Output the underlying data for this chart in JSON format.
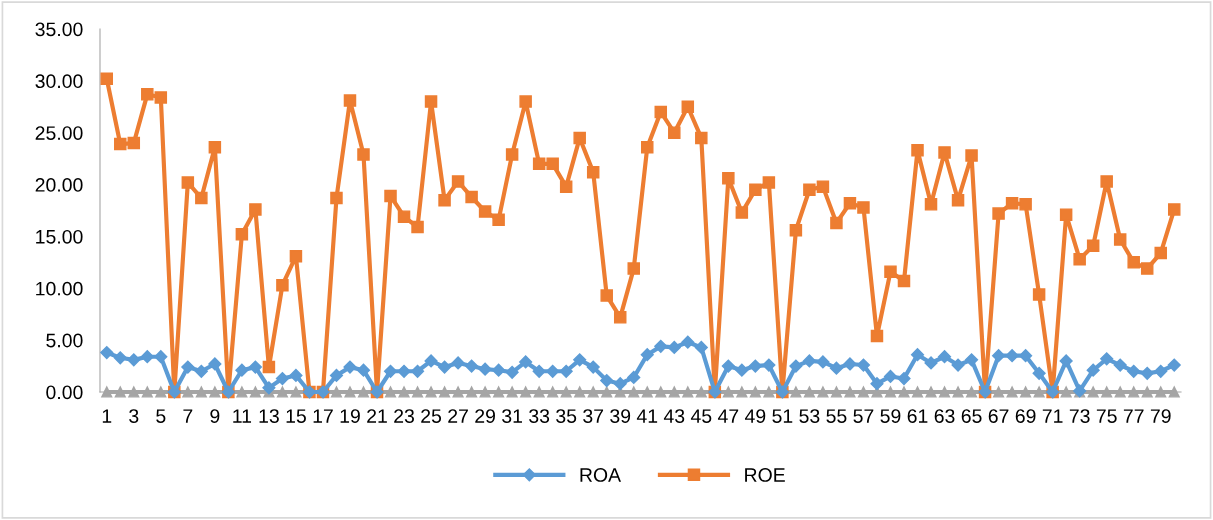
{
  "chart_data": {
    "type": "line",
    "categories": [
      "1",
      null,
      "3",
      null,
      "5",
      null,
      "7",
      null,
      "9",
      null,
      "11",
      null,
      "13",
      null,
      "15",
      null,
      "17",
      null,
      "19",
      null,
      "21",
      null,
      "23",
      null,
      "25",
      null,
      "27",
      null,
      "29",
      null,
      "31",
      null,
      "33",
      null,
      "35",
      null,
      "37",
      null,
      "39",
      null,
      "41",
      null,
      "43",
      null,
      "45",
      null,
      "47",
      null,
      "49",
      null,
      "51",
      null,
      "53",
      null,
      "55",
      null,
      "57",
      null,
      "59",
      null,
      "61",
      null,
      "63",
      null,
      "65",
      null,
      "67",
      null,
      "69",
      null,
      "71",
      null,
      "73",
      null,
      "75",
      null,
      "77",
      null,
      "79",
      null
    ],
    "series": [
      {
        "name": "ROA",
        "color": "#5b9bd5",
        "marker": "diamond",
        "values": [
          3.8,
          3.3,
          3.1,
          3.4,
          3.4,
          0,
          2.4,
          2.0,
          2.7,
          0,
          2.1,
          2.4,
          0.4,
          1.3,
          1.6,
          0,
          0,
          1.6,
          2.4,
          2.1,
          0,
          2.0,
          2.0,
          2.0,
          3.0,
          2.4,
          2.8,
          2.5,
          2.2,
          2.1,
          1.9,
          2.9,
          2.0,
          2.0,
          2.0,
          3.1,
          2.4,
          1.1,
          0.8,
          1.4,
          3.6,
          4.4,
          4.3,
          4.8,
          4.3,
          0,
          2.5,
          2.1,
          2.5,
          2.6,
          0,
          2.5,
          3.0,
          2.9,
          2.3,
          2.7,
          2.6,
          0.8,
          1.5,
          1.3,
          3.6,
          2.8,
          3.4,
          2.6,
          3.1,
          0,
          3.5,
          3.5,
          3.5,
          1.8,
          0,
          3.0,
          0.1,
          2.1,
          3.2,
          2.6,
          2.0,
          1.8,
          2.0,
          2.6
        ]
      },
      {
        "name": "ROE",
        "color": "#ed7d31",
        "marker": "square",
        "values": [
          30.2,
          23.9,
          24.0,
          28.7,
          28.4,
          0,
          20.2,
          18.7,
          23.6,
          0,
          15.2,
          17.6,
          2.4,
          10.3,
          13.1,
          0,
          0,
          18.7,
          28.1,
          22.9,
          0,
          18.9,
          16.9,
          15.9,
          28.0,
          18.5,
          20.3,
          18.8,
          17.4,
          16.6,
          22.9,
          28.0,
          22.0,
          22.0,
          19.8,
          24.5,
          21.2,
          9.3,
          7.2,
          11.9,
          23.6,
          27.0,
          25.0,
          27.5,
          24.5,
          0,
          20.6,
          17.3,
          19.5,
          20.2,
          0,
          15.6,
          19.5,
          19.8,
          16.3,
          18.2,
          17.8,
          5.4,
          11.6,
          10.7,
          23.3,
          18.1,
          23.1,
          18.5,
          22.8,
          0,
          17.2,
          18.2,
          18.1,
          9.4,
          0,
          17.1,
          12.8,
          14.1,
          20.3,
          14.7,
          12.5,
          11.9,
          13.4,
          17.6
        ]
      },
      {
        "color": "#a5a5a5",
        "marker": "triangle",
        "values": [
          0,
          0,
          0,
          0,
          0,
          0,
          0,
          0,
          0,
          0,
          0,
          0,
          0,
          0,
          0,
          0,
          0,
          0,
          0,
          0,
          0,
          0,
          0,
          0,
          0,
          0,
          0,
          0,
          0,
          0,
          0,
          0,
          0,
          0,
          0,
          0,
          0,
          0,
          0,
          0,
          0,
          0,
          0,
          0,
          0,
          0,
          0,
          0,
          0,
          0,
          0,
          0,
          0,
          0,
          0,
          0,
          0,
          0,
          0,
          0,
          0,
          0,
          0,
          0,
          0,
          0,
          0,
          0,
          0,
          0,
          0,
          0,
          0,
          0,
          0,
          0,
          0,
          0,
          0,
          0
        ]
      }
    ],
    "ylim": [
      0,
      35
    ],
    "yticks": [
      {
        "value": 0,
        "label": "0.00"
      },
      {
        "value": 5,
        "label": "5.00"
      },
      {
        "value": 10,
        "label": "10.00"
      },
      {
        "value": 15,
        "label": "15.00"
      },
      {
        "value": 20,
        "label": "20.00"
      },
      {
        "value": 25,
        "label": "25.00"
      },
      {
        "value": 30,
        "label": "30.00"
      },
      {
        "value": 35,
        "label": "35.00"
      }
    ],
    "grid": false,
    "legend": "bottom",
    "line_style": "solid"
  }
}
